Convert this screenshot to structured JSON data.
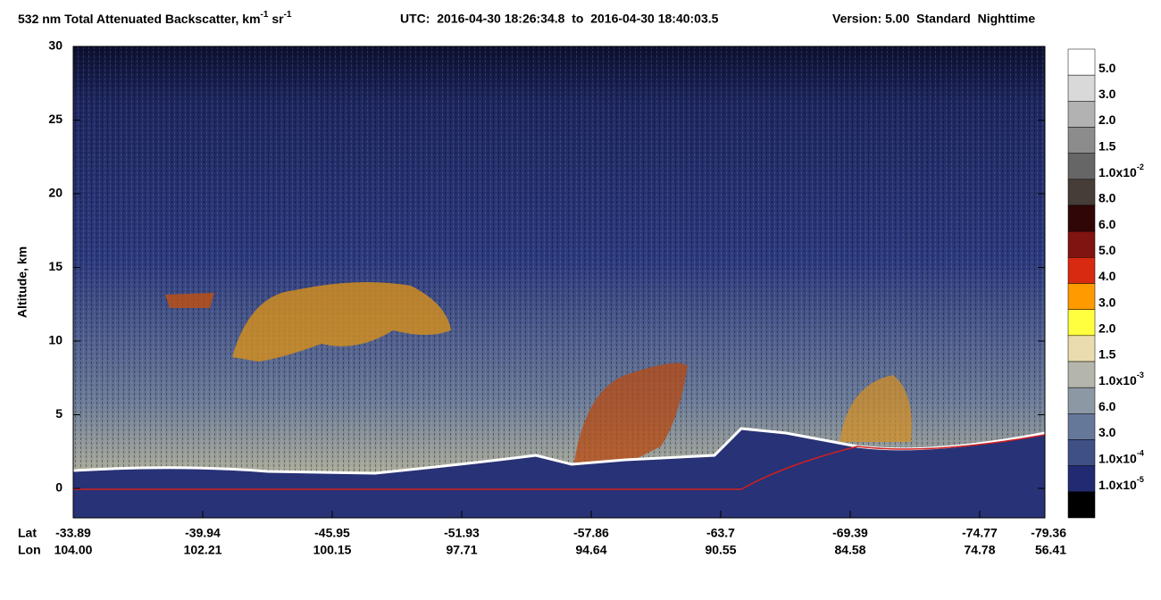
{
  "chart_data": {
    "type": "heatmap",
    "title": [
      "532 nm Total Attenuated Backscatter, km",
      "-1",
      " sr",
      "-1"
    ],
    "time_range": "UTC:  2016-04-30 18:26:34.8  to  2016-04-30 18:40:03.5",
    "version": "Version: 5.00  Standard  Nighttime",
    "ylabel": "Altitude, km",
    "ylim": [
      -2,
      30
    ],
    "yticks": [
      0,
      5,
      10,
      15,
      20,
      25,
      30
    ],
    "lat_label": "Lat",
    "lon_label": "Lon",
    "lat_ticks": [
      -33.89,
      -39.94,
      -45.95,
      -51.93,
      -57.86,
      -63.7,
      -69.39,
      -74.77,
      -79.36
    ],
    "lon_ticks": [
      {
        "value": 104,
        "label": "104.00"
      },
      102.21,
      100.15,
      97.71,
      94.64,
      90.55,
      84.58,
      74.78,
      56.41
    ],
    "colorbar": {
      "colors": [
        "#ffffff",
        "#d9d9d9",
        "#b2b2b2",
        "#8c8c8c",
        "#666666",
        "#463c38",
        "#300606",
        "#801410",
        "#d82a10",
        "#ff9a00",
        "#ffff40",
        "#eadcae",
        "#b4b6ac",
        "#8c98a4",
        "#66789a",
        "#3e5086",
        "#222a72",
        "#000000"
      ],
      "labels": [
        "5.0",
        "3.0",
        "2.0",
        "1.5",
        {
          "base": "1.0x10",
          "exp": "-2"
        },
        "8.0",
        "6.0",
        "5.0",
        "4.0",
        "3.0",
        "2.0",
        "1.5",
        {
          "base": "1.0x10",
          "exp": "-3"
        },
        "6.0",
        "3.0",
        {
          "base": "1.0x10",
          "exp": "-4"
        },
        {
          "base": "1.0x10",
          "exp": "-5"
        }
      ]
    }
  }
}
